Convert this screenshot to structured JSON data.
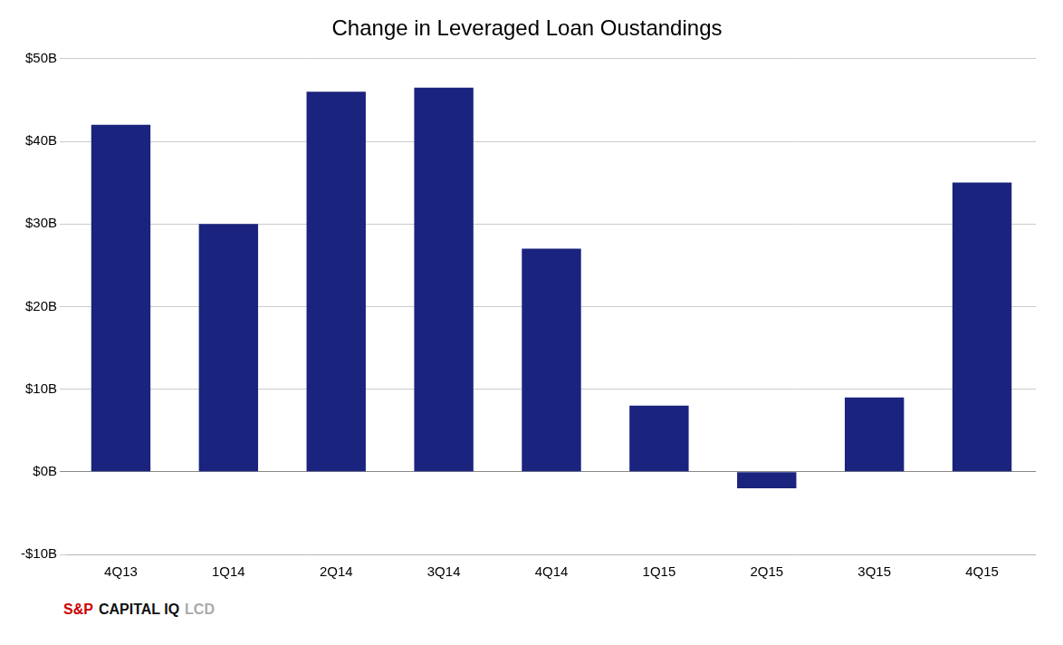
{
  "chart_data": {
    "type": "bar",
    "title": "Change in Leveraged Loan Oustandings",
    "categories": [
      "4Q13",
      "1Q14",
      "2Q14",
      "3Q14",
      "4Q14",
      "1Q15",
      "2Q15",
      "3Q15",
      "4Q15"
    ],
    "values": [
      42.0,
      30.0,
      46.0,
      46.5,
      27.0,
      8.0,
      -2.0,
      9.0,
      35.0
    ],
    "color": "#1a237e",
    "ylim": [
      -10,
      50
    ],
    "yticks": [
      {
        "value": -10,
        "label": "-$10B"
      },
      {
        "value": 0,
        "label": "$0B"
      },
      {
        "value": 10,
        "label": "$10B"
      },
      {
        "value": 20,
        "label": "$20B"
      },
      {
        "value": 30,
        "label": "$30B"
      },
      {
        "value": 40,
        "label": "$40B"
      },
      {
        "value": 50,
        "label": "$50B"
      }
    ],
    "grid": true,
    "annotations": [
      {
        "text": "S&P",
        "color": "#cc0000"
      },
      {
        "text": "CAPITAL IQ",
        "color": "#111111"
      },
      {
        "text": "LCD",
        "color": "#aaaaaa"
      }
    ]
  }
}
